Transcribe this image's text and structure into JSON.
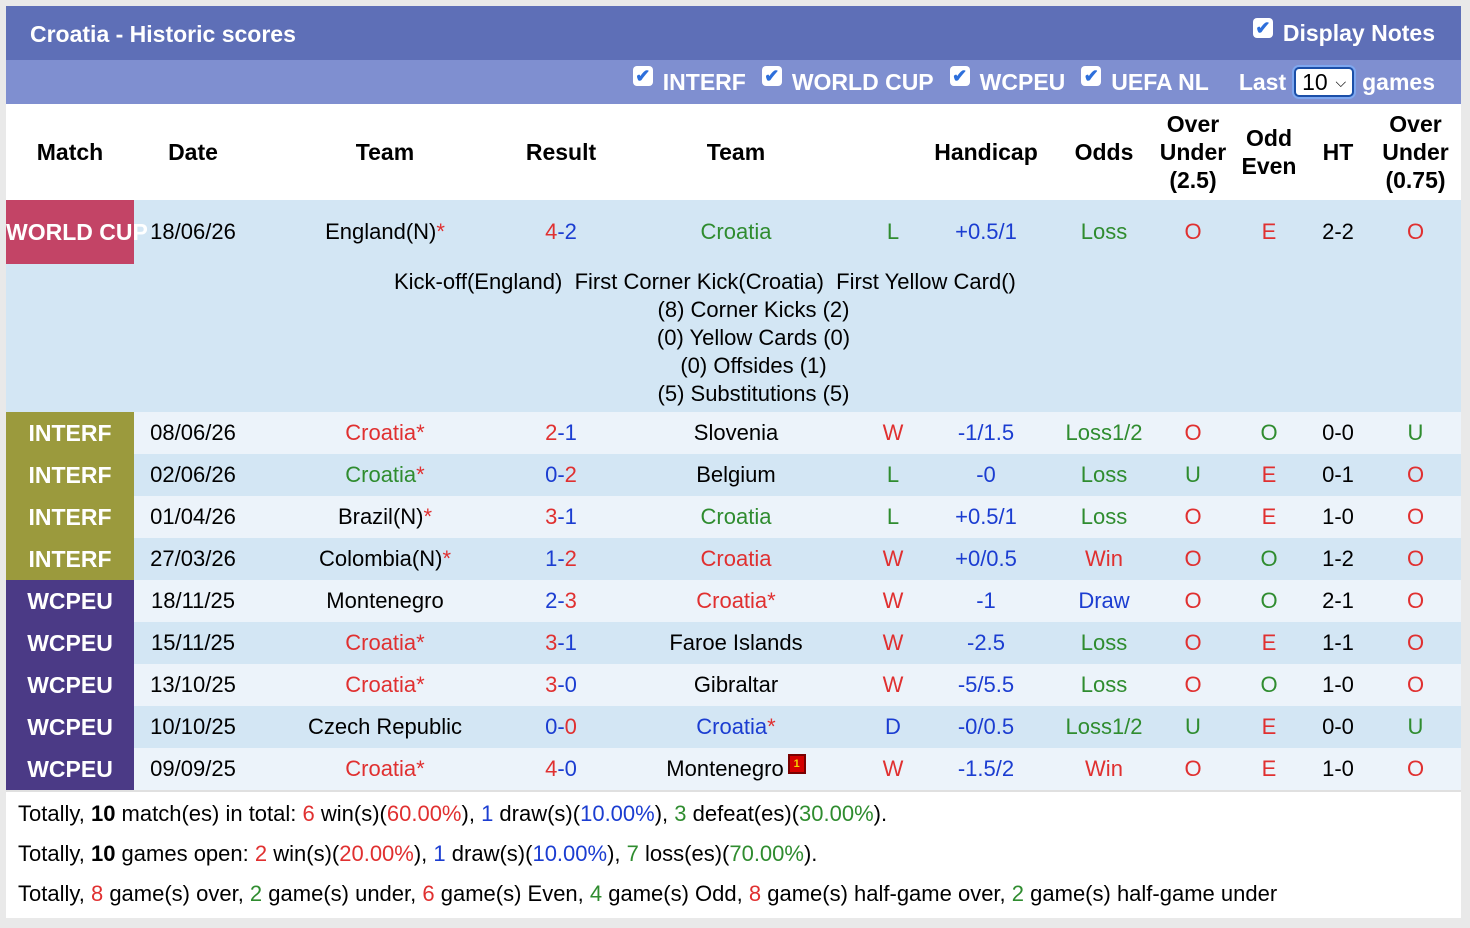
{
  "header": {
    "title": "Croatia - Historic scores",
    "display_notes": "Display Notes"
  },
  "filters": {
    "items": [
      "INTERF",
      "WORLD CUP",
      "WCPEU",
      "UEFA NL"
    ],
    "last_label": "Last",
    "last_value": "10",
    "games_label": "games"
  },
  "columns": [
    "Match",
    "Date",
    "Team",
    "Result",
    "Team",
    "",
    "Handicap",
    "Odds",
    "Over Under (2.5)",
    "Odd Even",
    "HT",
    "Over Under (0.75)"
  ],
  "first_match": {
    "league": "WORLD CUP",
    "date": "18/06/26",
    "home": "England(N)",
    "score_home": "4",
    "score_away": "2",
    "away": "Croatia",
    "wl": "L",
    "handicap": "+0.5/1",
    "odds": "Loss",
    "ou": "O",
    "oe": "E",
    "ht": "2-2",
    "ou2": "O",
    "notes": {
      "line1": "Kick-off(England)  First Corner Kick(Croatia)  First Yellow Card()",
      "line2": "(8) Corner Kicks (2)",
      "line3": "(0) Yellow Cards (0)",
      "line4": "(0) Offsides (1)",
      "line5": "(5) Substitutions (5)"
    }
  },
  "matches": [
    {
      "league": "INTERF",
      "date": "08/06/26",
      "home": "Croatia",
      "score_home": "2",
      "score_away": "1",
      "away": "Slovenia",
      "wl": "W",
      "handicap": "-1/1.5",
      "odds": "Loss1/2",
      "ou": "O",
      "oe": "O",
      "ht": "0-0",
      "ou2": "U"
    },
    {
      "league": "INTERF",
      "date": "02/06/26",
      "home": "Croatia",
      "score_home": "0",
      "score_away": "2",
      "away": "Belgium",
      "wl": "L",
      "handicap": "-0",
      "odds": "Loss",
      "ou": "U",
      "oe": "E",
      "ht": "0-1",
      "ou2": "O"
    },
    {
      "league": "INTERF",
      "date": "01/04/26",
      "home": "Brazil(N)",
      "score_home": "3",
      "score_away": "1",
      "away": "Croatia",
      "wl": "L",
      "handicap": "+0.5/1",
      "odds": "Loss",
      "ou": "O",
      "oe": "E",
      "ht": "1-0",
      "ou2": "O"
    },
    {
      "league": "INTERF",
      "date": "27/03/26",
      "home": "Colombia(N)",
      "score_home": "1",
      "score_away": "2",
      "away": "Croatia",
      "wl": "W",
      "handicap": "+0/0.5",
      "odds": "Win",
      "ou": "O",
      "oe": "O",
      "ht": "1-2",
      "ou2": "O"
    },
    {
      "league": "WCPEU",
      "date": "18/11/25",
      "home": "Montenegro",
      "score_home": "2",
      "score_away": "3",
      "away": "Croatia",
      "wl": "W",
      "handicap": "-1",
      "odds": "Draw",
      "ou": "O",
      "oe": "O",
      "ht": "2-1",
      "ou2": "O"
    },
    {
      "league": "WCPEU",
      "date": "15/11/25",
      "home": "Croatia",
      "score_home": "3",
      "score_away": "1",
      "away": "Faroe Islands",
      "wl": "W",
      "handicap": "-2.5",
      "odds": "Loss",
      "ou": "O",
      "oe": "E",
      "ht": "1-1",
      "ou2": "O"
    },
    {
      "league": "WCPEU",
      "date": "13/10/25",
      "home": "Croatia",
      "score_home": "3",
      "score_away": "0",
      "away": "Gibraltar",
      "wl": "W",
      "handicap": "-5/5.5",
      "odds": "Loss",
      "ou": "O",
      "oe": "O",
      "ht": "1-0",
      "ou2": "O"
    },
    {
      "league": "WCPEU",
      "date": "10/10/25",
      "home": "Czech Republic",
      "score_home": "0",
      "score_away": "0",
      "away": "Croatia",
      "wl": "D",
      "handicap": "-0/0.5",
      "odds": "Loss1/2",
      "ou": "U",
      "oe": "E",
      "ht": "0-0",
      "ou2": "U"
    },
    {
      "league": "WCPEU",
      "date": "09/09/25",
      "home": "Croatia",
      "score_home": "4",
      "score_away": "0",
      "away": "Montenegro",
      "wl": "W",
      "handicap": "-1.5/2",
      "odds": "Win",
      "ou": "O",
      "oe": "E",
      "ht": "1-0",
      "ou2": "O"
    }
  ],
  "summary": {
    "l1": {
      "a": "Totally, ",
      "b": "10",
      "c": " match(es) in total: ",
      "d": "6",
      "e": " win(s)(",
      "f": "60.00%",
      "g": "), ",
      "h": "1",
      "i": " draw(s)(",
      "j": "10.00%",
      "k": "), ",
      "l": "3",
      "m": " defeat(es)(",
      "n": "30.00%",
      "o": ")."
    },
    "l2": {
      "a": "Totally, ",
      "b": "10",
      "c": " games open: ",
      "d": "2",
      "e": " win(s)(",
      "f": "20.00%",
      "g": "), ",
      "h": "1",
      "i": " draw(s)(",
      "j": "10.00%",
      "k": "), ",
      "l": "7",
      "m": " loss(es)(",
      "n": "70.00%",
      "o": ")."
    },
    "l3": {
      "a": "Totally, ",
      "b": "8",
      "c": " game(s) over, ",
      "d": "2",
      "e": " game(s) under, ",
      "f": "6",
      "g": " game(s) Even, ",
      "h": "4",
      "i": " game(s) Odd, ",
      "j": "8",
      "k": " game(s) half-game over, ",
      "l": "2",
      "m": " game(s) half-game under"
    }
  }
}
